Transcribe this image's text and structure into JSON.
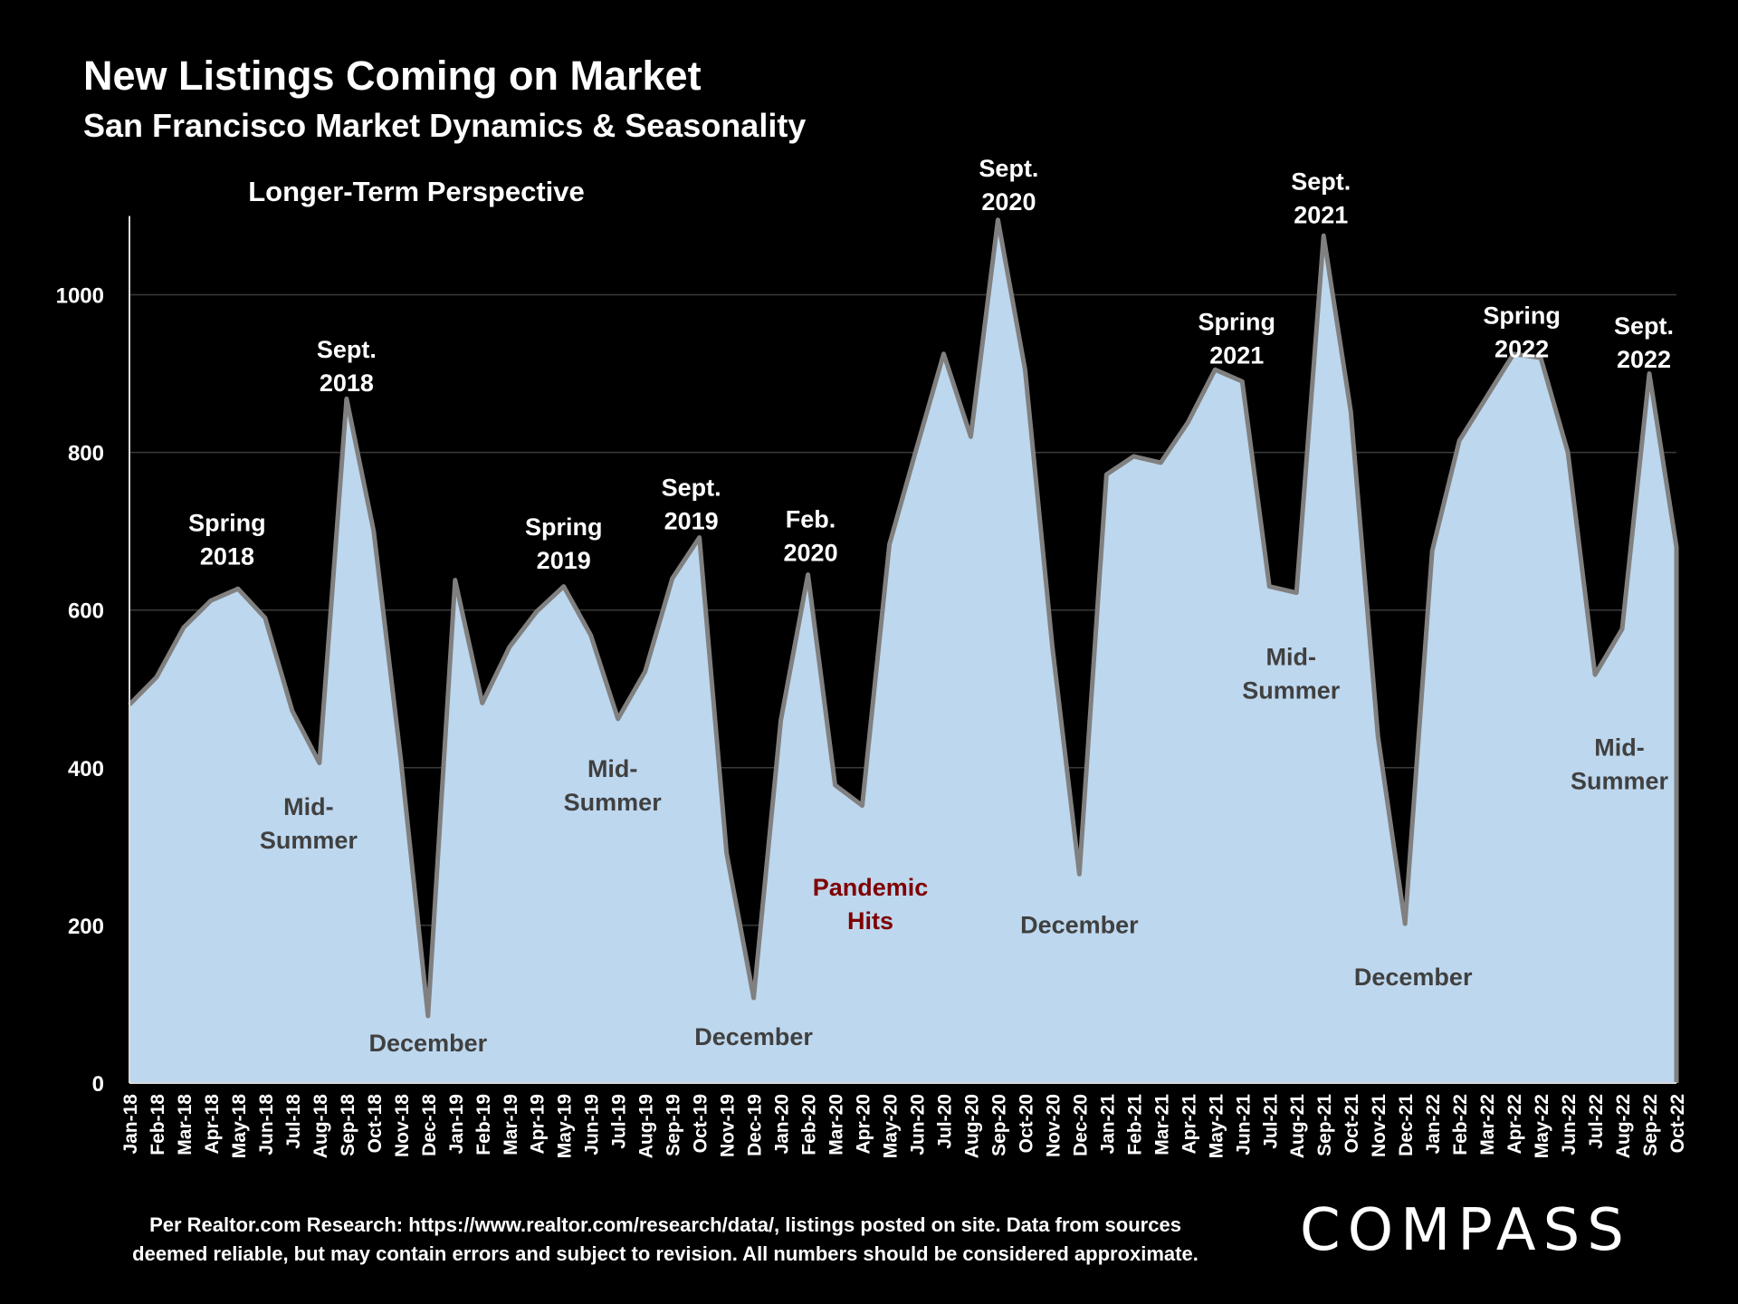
{
  "header": {
    "title": "New Listings Coming on Market",
    "subtitle": "San Francisco Market Dynamics & Seasonality"
  },
  "footer": {
    "note_line1": "Per Realtor.com Research:  https://www.realtor.com/research/data/, listings posted on site. Data from sources",
    "note_line2": "deemed reliable, but may contain errors and subject to revision. All numbers should be considered approximate.",
    "logo": "COMPASS"
  },
  "colors": {
    "background": "#000000",
    "area_fill": "#bdd7ee",
    "area_stroke": "#808080",
    "label_white": "#ffffff",
    "label_dark": "#404040",
    "label_pandemic": "#7f0000",
    "gridline": "#3a3a3a"
  },
  "chart_data": {
    "type": "area",
    "title": "Longer-Term Perspective",
    "xlabel": "",
    "ylabel": "",
    "ylim": [
      0,
      1100
    ],
    "yticks": [
      0,
      200,
      400,
      600,
      800,
      1000
    ],
    "grid": true,
    "categories": [
      "Jan-18",
      "Feb-18",
      "Mar-18",
      "Apr-18",
      "May-18",
      "Jun-18",
      "Jul-18",
      "Aug-18",
      "Sep-18",
      "Oct-18",
      "Nov-18",
      "Dec-18",
      "Jan-19",
      "Feb-19",
      "Mar-19",
      "Apr-19",
      "May-19",
      "Jun-19",
      "Jul-19",
      "Aug-19",
      "Sep-19",
      "Oct-19",
      "Nov-19",
      "Dec-19",
      "Jan-20",
      "Feb-20",
      "Mar-20",
      "Apr-20",
      "May-20",
      "Jun-20",
      "Jul-20",
      "Aug-20",
      "Sep-20",
      "Oct-20",
      "Nov-20",
      "Dec-20",
      "Jan-21",
      "Feb-21",
      "Mar-21",
      "Apr-21",
      "May-21",
      "Jun-21",
      "Jul-21",
      "Aug-21",
      "Sep-21",
      "Oct-21",
      "Nov-21",
      "Dec-21",
      "Jan-22",
      "Feb-22",
      "Mar-22",
      "Apr-22",
      "May-22",
      "Jun-22",
      "Jul-22",
      "Aug-22",
      "Sep-22",
      "Oct-22"
    ],
    "series": [
      {
        "name": "New Listings",
        "values": [
          480,
          515,
          578,
          612,
          627,
          590,
          472,
          406,
          868,
          700,
          410,
          85,
          638,
          482,
          553,
          598,
          630,
          568,
          462,
          522,
          640,
          692,
          292,
          108,
          460,
          645,
          378,
          352,
          683,
          805,
          925,
          820,
          1095,
          905,
          555,
          265,
          772,
          795,
          787,
          838,
          905,
          890,
          630,
          622,
          1075,
          852,
          440,
          202,
          675,
          815,
          870,
          925,
          920,
          800,
          518,
          576,
          900,
          680
        ]
      }
    ],
    "annotations": [
      {
        "text": "Spring\n2018",
        "index": 3.6,
        "value": 700,
        "style": "white"
      },
      {
        "text": "Sept.\n2018",
        "index": 8,
        "value": 920,
        "style": "white"
      },
      {
        "text": "Mid-\nSummer",
        "index": 6.6,
        "value": 340,
        "style": "dark"
      },
      {
        "text": "December",
        "index": 11,
        "value": 40,
        "style": "dark"
      },
      {
        "text": "Spring\n2019",
        "index": 16,
        "value": 695,
        "style": "white"
      },
      {
        "text": "Sept.\n2019",
        "index": 20.7,
        "value": 745,
        "style": "white"
      },
      {
        "text": "Mid-\nSummer",
        "index": 17.8,
        "value": 388,
        "style": "dark"
      },
      {
        "text": "December",
        "index": 23,
        "value": 48,
        "style": "dark"
      },
      {
        "text": "Feb.\n2020",
        "index": 25.1,
        "value": 705,
        "style": "white"
      },
      {
        "text": "Pandemic\nHits",
        "index": 27.3,
        "value": 238,
        "style": "pandemic"
      },
      {
        "text": "Sept.\n2020",
        "index": 32.4,
        "value": 1150,
        "style": "white"
      },
      {
        "text": "December",
        "index": 35,
        "value": 190,
        "style": "dark"
      },
      {
        "text": "Spring\n2021",
        "index": 40.8,
        "value": 955,
        "style": "white"
      },
      {
        "text": "Sept.\n2021",
        "index": 43.9,
        "value": 1133,
        "style": "white"
      },
      {
        "text": "Mid-\nSummer",
        "index": 42.8,
        "value": 530,
        "style": "dark"
      },
      {
        "text": "December",
        "index": 47.3,
        "value": 124,
        "style": "dark"
      },
      {
        "text": "Spring\n2022",
        "index": 51.3,
        "value": 963,
        "style": "white"
      },
      {
        "text": "Sept.\n2022",
        "index": 55.8,
        "value": 950,
        "style": "white"
      },
      {
        "text": "Mid-\nSummer",
        "index": 54.9,
        "value": 415,
        "style": "dark"
      }
    ]
  }
}
